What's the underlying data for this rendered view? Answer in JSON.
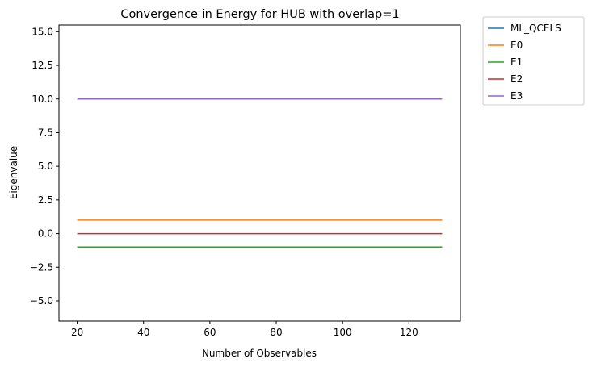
{
  "chart_data": {
    "type": "line",
    "title": "Convergence in Energy for HUB with overlap=1",
    "xlabel": "Number of Observables",
    "ylabel": "Eigenvalue",
    "xlim": [
      14.5,
      135.5
    ],
    "ylim": [
      -6.5,
      15.5
    ],
    "xticks": [
      20,
      40,
      60,
      80,
      100,
      120
    ],
    "xtick_labels": [
      "20",
      "40",
      "60",
      "80",
      "100",
      "120"
    ],
    "yticks": [
      -5.0,
      -2.5,
      0.0,
      2.5,
      5.0,
      7.5,
      10.0,
      12.5,
      15.0
    ],
    "ytick_labels": [
      "−5.0",
      "−2.5",
      "0.0",
      "2.5",
      "5.0",
      "7.5",
      "10.0",
      "12.5",
      "15.0"
    ],
    "grid": false,
    "legend_position": "outside-top-right",
    "x": [
      20,
      130
    ],
    "series": [
      {
        "name": "ML_QCELS",
        "color": "#1f77b4",
        "values": [
          -1.0,
          -1.0
        ]
      },
      {
        "name": "E0",
        "color": "#ff7f0e",
        "values": [
          1.0,
          1.0
        ]
      },
      {
        "name": "E1",
        "color": "#2ca02c",
        "values": [
          -1.0,
          -1.0
        ]
      },
      {
        "name": "E2",
        "color": "#d62728",
        "values": [
          0.0,
          0.0
        ]
      },
      {
        "name": "E3",
        "color": "#9467bd",
        "values": [
          10.0,
          10.0
        ]
      }
    ]
  }
}
